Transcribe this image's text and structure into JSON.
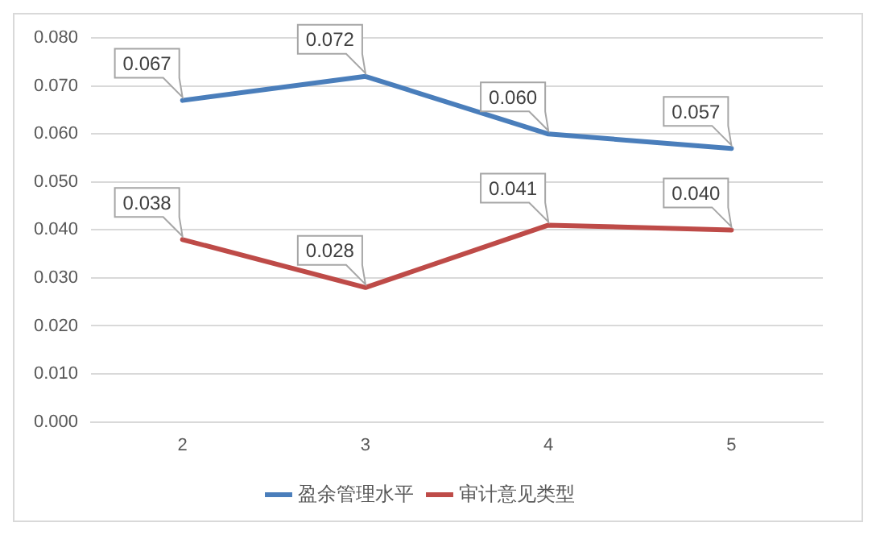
{
  "chart_data": {
    "type": "line",
    "categories": [
      "2",
      "3",
      "4",
      "5"
    ],
    "series": [
      {
        "name": "盈余管理水平",
        "color": "#4a7ebb",
        "values": [
          0.067,
          0.072,
          0.06,
          0.057
        ],
        "value_labels": [
          "0.067",
          "0.072",
          "0.060",
          "0.057"
        ]
      },
      {
        "name": "审计意见类型",
        "color": "#be4b48",
        "values": [
          0.038,
          0.028,
          0.041,
          0.04
        ],
        "value_labels": [
          "0.038",
          "0.028",
          "0.041",
          "0.040"
        ]
      }
    ],
    "ylim": [
      0,
      0.08
    ],
    "yticks": [
      {
        "value": 0,
        "label": "0.000"
      },
      {
        "value": 0.01,
        "label": "0.010"
      },
      {
        "value": 0.02,
        "label": "0.020"
      },
      {
        "value": 0.03,
        "label": "0.030"
      },
      {
        "value": 0.04,
        "label": "0.040"
      },
      {
        "value": 0.05,
        "label": "0.050"
      },
      {
        "value": 0.06,
        "label": "0.060"
      },
      {
        "value": 0.07,
        "label": "0.070"
      },
      {
        "value": 0.08,
        "label": "0.080"
      }
    ],
    "grid": "y",
    "legend": "bottom",
    "marker": "none",
    "line_style": "solid"
  }
}
